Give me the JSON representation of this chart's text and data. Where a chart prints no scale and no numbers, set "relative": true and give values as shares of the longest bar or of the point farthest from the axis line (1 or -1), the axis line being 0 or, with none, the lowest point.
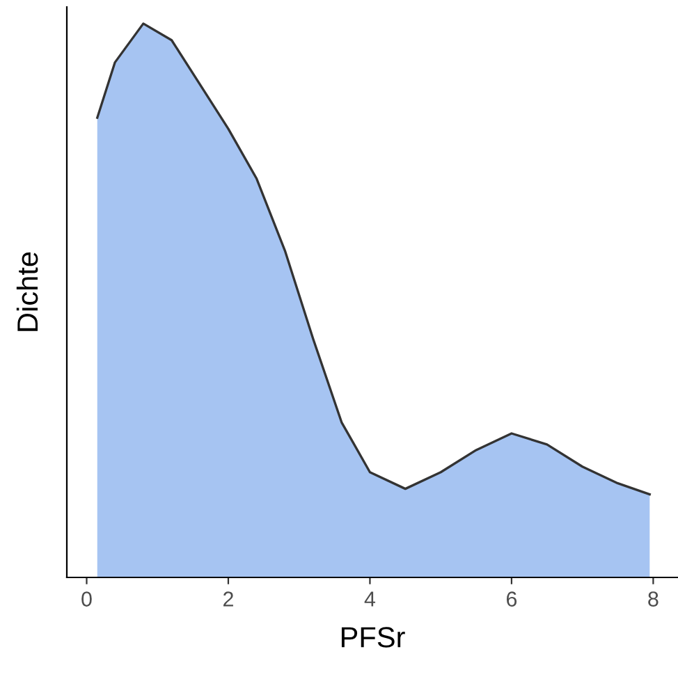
{
  "chart_data": {
    "type": "area",
    "xlabel": "PFSr",
    "ylabel": "Dichte",
    "relative": true,
    "xlim": [
      -0.28,
      8.35
    ],
    "xticks": [
      0,
      2,
      4,
      6,
      8
    ],
    "grid": false,
    "legend": false,
    "series": [
      {
        "color": "#a6c4f2",
        "x": [
          0.15,
          0.4,
          0.8,
          1.2,
          1.6,
          2.0,
          2.4,
          2.8,
          3.2,
          3.6,
          4.0,
          4.5,
          5.0,
          5.5,
          6.0,
          6.5,
          7.0,
          7.5,
          7.95
        ],
        "values": [
          0.83,
          0.93,
          1.0,
          0.97,
          0.89,
          0.81,
          0.72,
          0.59,
          0.43,
          0.28,
          0.19,
          0.16,
          0.19,
          0.23,
          0.26,
          0.24,
          0.2,
          0.17,
          0.15
        ]
      }
    ]
  }
}
